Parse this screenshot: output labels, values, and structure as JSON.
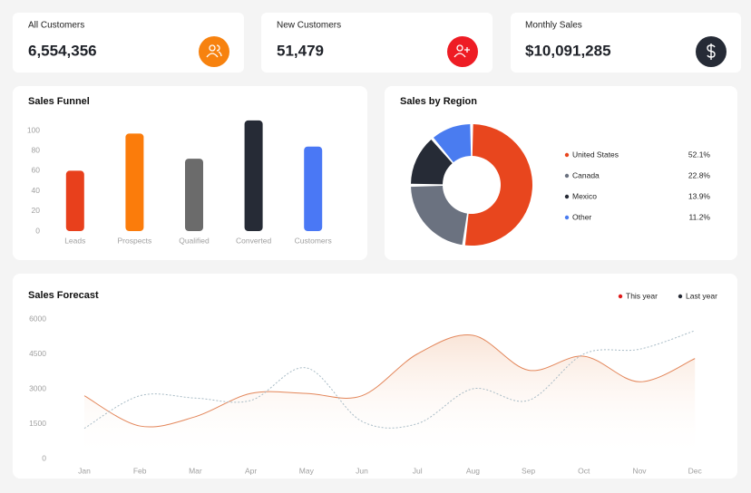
{
  "cards": [
    {
      "label": "All Customers",
      "value": "6,554,356",
      "icon_color": "#f7820f"
    },
    {
      "label": "New Customers",
      "value": "51,479",
      "icon_color": "#ee1c24"
    },
    {
      "label": "Monthly Sales",
      "value": "$10,091,285",
      "icon_color": "#262b36"
    }
  ],
  "chart_data": [
    {
      "type": "bar",
      "title": "Sales Funnel",
      "categories": [
        "Leads",
        "Prospects",
        "Qualified",
        "Converted",
        "Customers"
      ],
      "values": [
        60,
        97,
        72,
        110,
        84
      ],
      "colors": [
        "#e8401c",
        "#fb7c0b",
        "#6b6b6b",
        "#262b36",
        "#4a78f5"
      ],
      "ylim": [
        0,
        100
      ],
      "yticks": [
        0,
        20,
        40,
        60,
        80,
        100
      ]
    },
    {
      "type": "pie",
      "title": "Sales by Region",
      "categories": [
        "United States",
        "Canada",
        "Mexico",
        "Other"
      ],
      "values": [
        52.1,
        22.8,
        13.9,
        11.2
      ],
      "value_labels": [
        "52.1%",
        "22.8%",
        "13.9%",
        "11.2%"
      ],
      "colors": [
        "#e8461e",
        "#6b7280",
        "#262b36",
        "#4a7cf0"
      ]
    },
    {
      "type": "line",
      "title": "Sales Forecast",
      "categories": [
        "Jan",
        "Feb",
        "Mar",
        "Apr",
        "May",
        "Jun",
        "Jul",
        "Aug",
        "Sep",
        "Oct",
        "Nov",
        "Dec"
      ],
      "series": [
        {
          "name": "This year",
          "color": "#e3865a",
          "marker_color": "#e01b1b",
          "values": [
            2700,
            1400,
            1800,
            2800,
            2800,
            2700,
            4500,
            5300,
            3800,
            4400,
            3300,
            4300
          ]
        },
        {
          "name": "Last year",
          "color": "#a9bcc6",
          "marker_color": "#262b36",
          "values": [
            1300,
            2700,
            2600,
            2500,
            3900,
            1600,
            1500,
            3000,
            2500,
            4500,
            4700,
            5500
          ]
        }
      ],
      "ylim": [
        0,
        6000
      ],
      "yticks": [
        0,
        1500,
        3000,
        4500,
        6000
      ],
      "legend": "top-right"
    }
  ]
}
